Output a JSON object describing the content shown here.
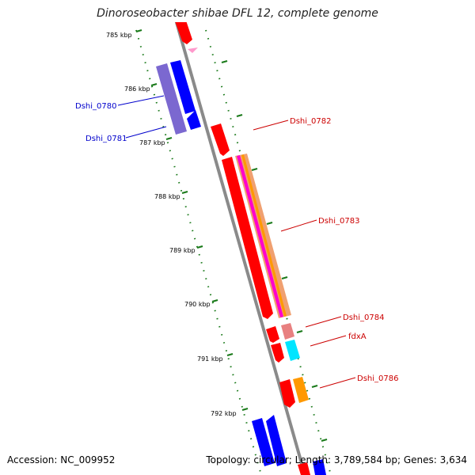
{
  "title": "Dinoroseobacter shibae DFL 12, complete genome",
  "accession": "Accession: NC_009952",
  "topology": "Topology: circular; Length: 3,789,584 bp; Genes: 3,634",
  "colors": {
    "backbone": "#8a8a8a",
    "tick": "#1a7a1a",
    "forward_gene": "#ff0000",
    "reverse_gene": "#0000ff",
    "forward_label": "#cc0000",
    "reverse_label": "#0000cc"
  },
  "scale_labels": [
    "785 kbp",
    "786 kbp",
    "787 kbp",
    "788 kbp",
    "789 kbp",
    "790 kbp",
    "791 kbp",
    "792 kbp"
  ],
  "gene_labels": {
    "forward": [
      "Dshi_0782",
      "Dshi_0783",
      "Dshi_0784",
      "fdxA",
      "Dshi_0786"
    ],
    "reverse": [
      "Dshi_0780",
      "Dshi_0781"
    ]
  }
}
